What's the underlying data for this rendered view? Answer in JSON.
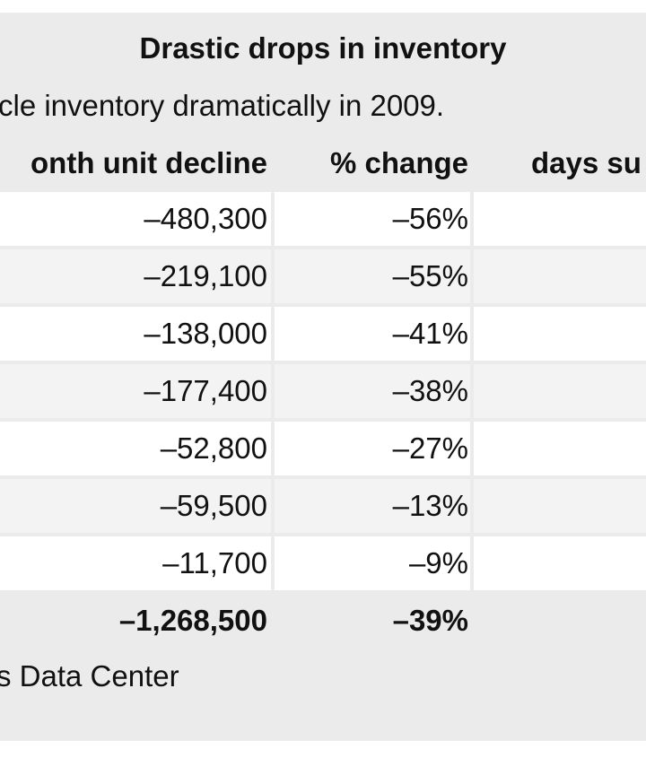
{
  "table": {
    "title": "Drastic drops in inventory",
    "subtitle": "cle inventory dramatically in 2009.",
    "columns": [
      "onth unit decline",
      "% change",
      "days su"
    ],
    "rows": [
      [
        "–480,300",
        "–56%"
      ],
      [
        "–219,100",
        "–55%"
      ],
      [
        "–138,000",
        "–41%"
      ],
      [
        "–177,400",
        "–38%"
      ],
      [
        "–52,800",
        "–27%"
      ],
      [
        "–59,500",
        "–13%"
      ],
      [
        "–11,700",
        "–9%"
      ]
    ],
    "total": [
      "–1,268,500",
      "–39%"
    ],
    "source": "s Data Center"
  }
}
